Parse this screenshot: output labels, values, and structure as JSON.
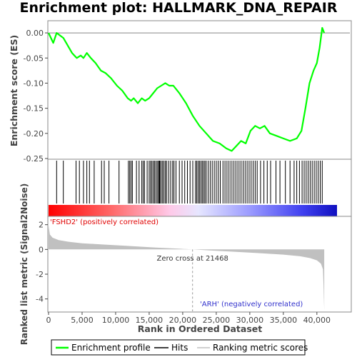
{
  "chart_data": {
    "type": "line",
    "title": "Enrichment plot: HALLMARK_DNA_REPAIR",
    "es_panel": {
      "ylabel": "Enrichment score (ES)",
      "ylim": [
        -0.25,
        0.02
      ],
      "yticks": [
        "0.00",
        "-0.05",
        "-0.10",
        "-0.15",
        "-0.20",
        "-0.25"
      ],
      "ytick_values": [
        0.0,
        -0.05,
        -0.1,
        -0.15,
        -0.2,
        -0.25
      ],
      "line_color": "#00ff00",
      "series": [
        {
          "name": "Enrichment profile",
          "x": [
            0,
            700,
            1200,
            2200,
            3500,
            4200,
            4800,
            5200,
            5700,
            6300,
            7000,
            7800,
            8500,
            9300,
            10200,
            11000,
            11800,
            12300,
            12700,
            13300,
            13900,
            14400,
            15000,
            15600,
            16200,
            16800,
            17400,
            18000,
            18600,
            19500,
            20500,
            21500,
            22500,
            23500,
            24500,
            25500,
            26500,
            27300,
            28000,
            28700,
            29400,
            30100,
            30800,
            31500,
            32200,
            33000,
            34000,
            35000,
            36000,
            37000,
            37700,
            38300,
            38900,
            39500,
            40000,
            40400,
            40800,
            41100
          ],
          "y": [
            0.0,
            -0.02,
            0.0,
            -0.01,
            -0.04,
            -0.05,
            -0.045,
            -0.05,
            -0.04,
            -0.05,
            -0.06,
            -0.075,
            -0.08,
            -0.09,
            -0.105,
            -0.115,
            -0.13,
            -0.135,
            -0.13,
            -0.14,
            -0.13,
            -0.135,
            -0.13,
            -0.12,
            -0.11,
            -0.105,
            -0.1,
            -0.105,
            -0.105,
            -0.12,
            -0.14,
            -0.165,
            -0.185,
            -0.2,
            -0.215,
            -0.22,
            -0.23,
            -0.235,
            -0.225,
            -0.215,
            -0.22,
            -0.195,
            -0.185,
            -0.19,
            -0.185,
            -0.2,
            -0.205,
            -0.21,
            -0.215,
            -0.21,
            -0.195,
            -0.15,
            -0.1,
            -0.075,
            -0.06,
            -0.03,
            0.01,
            0.0
          ]
        }
      ]
    },
    "hits_panel": {
      "hit_positions": [
        1200,
        2200,
        4100,
        4600,
        5200,
        5700,
        6100,
        6800,
        7900,
        8300,
        9000,
        10500,
        11900,
        12100,
        12300,
        12500,
        13100,
        13500,
        13900,
        14100,
        14300,
        14700,
        15000,
        15200,
        15400,
        15600,
        15800,
        16000,
        16200,
        16400,
        16500,
        16600,
        16800,
        17000,
        17200,
        17400,
        17600,
        17900,
        18200,
        18500,
        18700,
        19000,
        19500,
        19900,
        20300,
        20700,
        21100,
        21500,
        21900,
        22100,
        22300,
        22500,
        22700,
        22900,
        23100,
        23300,
        23500,
        23800,
        24100,
        24400,
        24700,
        25000,
        25300,
        25600,
        26000,
        26300,
        26600,
        26900,
        27200,
        27500,
        27800,
        28100,
        28400,
        28700,
        29000,
        29300,
        29600,
        29900,
        30200,
        30500,
        30800,
        31100,
        31600,
        32100,
        32600,
        33100,
        33900,
        34500,
        35300,
        36000,
        36600,
        37000,
        37400,
        37800,
        38100,
        38400,
        38700,
        39000,
        39300,
        39600,
        39900,
        40200,
        40500,
        40800
      ]
    },
    "metric_panel": {
      "ylabel": "Ranked list metric (Signal2Noise)",
      "ylim": [
        -5.0,
        2.5
      ],
      "yticks": [
        "2",
        "0",
        "-2",
        "-4"
      ],
      "ytick_values": [
        2,
        0,
        -2,
        -4
      ],
      "fill_color": "#c0c0c0",
      "profile_x": [
        0,
        200,
        600,
        1500,
        3000,
        5000,
        8000,
        12000,
        16000,
        20000,
        21468,
        24000,
        28000,
        32000,
        35000,
        37500,
        39000,
        40000,
        40600,
        40900,
        41000,
        41100
      ],
      "profile_y": [
        1.9,
        1.2,
        0.95,
        0.75,
        0.62,
        0.5,
        0.4,
        0.28,
        0.15,
        0.04,
        0.0,
        -0.08,
        -0.2,
        -0.32,
        -0.42,
        -0.55,
        -0.7,
        -0.88,
        -1.15,
        -1.6,
        -3.0,
        -4.9
      ],
      "zero_cross_label": "Zero cross at 21468",
      "zero_cross_x": 21468,
      "pos_label": "'FSHD2' (positively correlated)",
      "neg_label": "'ARH' (negatively correlated)"
    },
    "xlabel": "Rank in Ordered Dataset",
    "xlim": [
      0,
      43000
    ],
    "xticks": [
      "0",
      "5,000",
      "10,000",
      "15,000",
      "20,000",
      "25,000",
      "30,000",
      "35,000",
      "40,000"
    ],
    "xtick_values": [
      0,
      5000,
      10000,
      15000,
      20000,
      25000,
      30000,
      35000,
      40000
    ],
    "legend": {
      "placement": "bottom",
      "items": [
        {
          "label": "Enrichment profile",
          "color": "#00ff00"
        },
        {
          "label": "Hits",
          "color": "#000000"
        },
        {
          "label": "Ranking metric scores",
          "color": "#c0c0c0"
        }
      ]
    }
  }
}
